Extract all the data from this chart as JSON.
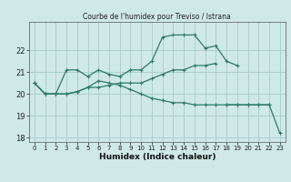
{
  "xlabel": "Humidex (Indice chaleur)",
  "bg_color": "#cfe8e8",
  "grid_color": "#a8cccc",
  "line_color": "#2d7a6a",
  "x_ticks": [
    0,
    1,
    2,
    3,
    4,
    5,
    6,
    7,
    8,
    9,
    10,
    11,
    12,
    13,
    14,
    15,
    16,
    17,
    18,
    19,
    20,
    21,
    22,
    23
  ],
  "xlim": [
    -0.5,
    23.5
  ],
  "ylim": [
    17.8,
    23.3
  ],
  "y_ticks": [
    18,
    19,
    20,
    21,
    22
  ],
  "series": [
    {
      "x": [
        0,
        1,
        2,
        3,
        4,
        5,
        6,
        7,
        8,
        9,
        10,
        11,
        12,
        13,
        14,
        15,
        16,
        17,
        18,
        19
      ],
      "y": [
        20.5,
        20.0,
        20.0,
        21.1,
        21.1,
        20.8,
        21.1,
        20.9,
        20.8,
        21.1,
        21.1,
        21.5,
        22.6,
        22.7,
        22.7,
        22.7,
        22.1,
        22.2,
        21.5,
        21.3
      ]
    },
    {
      "x": [
        0,
        1,
        2,
        3,
        4,
        5,
        6,
        7,
        8,
        9,
        10,
        11,
        12,
        13,
        14,
        15,
        16,
        17
      ],
      "y": [
        20.5,
        20.0,
        20.0,
        20.0,
        20.1,
        20.3,
        20.3,
        20.4,
        20.5,
        20.5,
        20.5,
        20.7,
        20.9,
        21.1,
        21.1,
        21.3,
        21.3,
        21.4
      ]
    },
    {
      "x": [
        0,
        1,
        2,
        3,
        4,
        5,
        6,
        7,
        8,
        9,
        10,
        11,
        12,
        13,
        14,
        15,
        16,
        17,
        18,
        19,
        20,
        21,
        22
      ],
      "y": [
        20.5,
        20.0,
        20.0,
        20.0,
        20.1,
        20.3,
        20.6,
        20.5,
        20.4,
        20.2,
        20.0,
        19.8,
        19.7,
        19.6,
        19.6,
        19.5,
        19.5,
        19.5,
        19.5,
        19.5,
        19.5,
        19.5,
        19.5
      ]
    },
    {
      "x": [
        18,
        19,
        20,
        21,
        22,
        23
      ],
      "y": [
        19.5,
        19.5,
        19.5,
        19.5,
        19.5,
        18.2
      ]
    }
  ]
}
